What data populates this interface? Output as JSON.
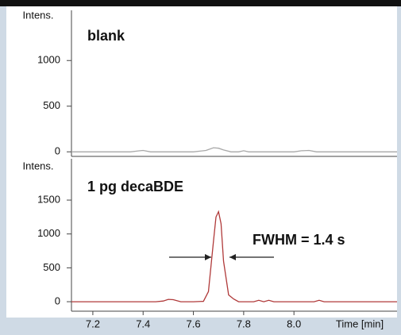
{
  "chart_data": [
    {
      "type": "line",
      "y_label": "Intens.",
      "annotations": [
        "blank"
      ],
      "x": [
        7.115,
        7.35,
        7.38,
        7.4,
        7.43,
        7.6,
        7.65,
        7.68,
        7.7,
        7.72,
        7.75,
        7.78,
        7.8,
        7.82,
        8.0,
        8.03,
        8.06,
        8.09,
        8.41
      ],
      "series": [
        {
          "color": "#a8a8a8",
          "values": [
            0,
            0,
            10,
            15,
            0,
            0,
            15,
            45,
            40,
            20,
            0,
            0,
            12,
            0,
            0,
            12,
            15,
            0,
            0
          ]
        }
      ],
      "xlim": [
        7.115,
        8.41
      ],
      "ylim": [
        -50,
        1550
      ],
      "yticks": [
        0,
        500,
        1000
      ]
    },
    {
      "type": "line",
      "y_label": "Intens.",
      "x_label": "Time [min]",
      "annotations": [
        "1 pg decaBDE",
        "FWHM = 1.4 s"
      ],
      "x": [
        7.115,
        7.2,
        7.3,
        7.4,
        7.45,
        7.48,
        7.5,
        7.52,
        7.55,
        7.6,
        7.64,
        7.66,
        7.68,
        7.69,
        7.7,
        7.71,
        7.72,
        7.74,
        7.76,
        7.78,
        7.8,
        7.84,
        7.86,
        7.88,
        7.9,
        7.92,
        7.95,
        8.0,
        8.05,
        8.08,
        8.1,
        8.12,
        8.2,
        8.3,
        8.41
      ],
      "series": [
        {
          "color": "#b03a3a",
          "values": [
            0,
            0,
            0,
            0,
            0,
            10,
            35,
            30,
            0,
            0,
            5,
            150,
            900,
            1250,
            1330,
            1150,
            600,
            100,
            40,
            0,
            0,
            0,
            20,
            0,
            20,
            0,
            0,
            0,
            0,
            0,
            20,
            0,
            0,
            0,
            0
          ]
        }
      ],
      "xlim": [
        7.115,
        8.41
      ],
      "ylim": [
        -140,
        2110
      ],
      "yticks": [
        0,
        500,
        1000,
        1500
      ],
      "xticks": [
        {
          "value": 7.2,
          "label": "7.2"
        },
        {
          "value": 7.4,
          "label": "7.4"
        },
        {
          "value": 7.6,
          "label": "7.6"
        },
        {
          "value": 7.8,
          "label": "7.8"
        },
        {
          "value": 8.0,
          "label": "8.0"
        }
      ]
    }
  ]
}
